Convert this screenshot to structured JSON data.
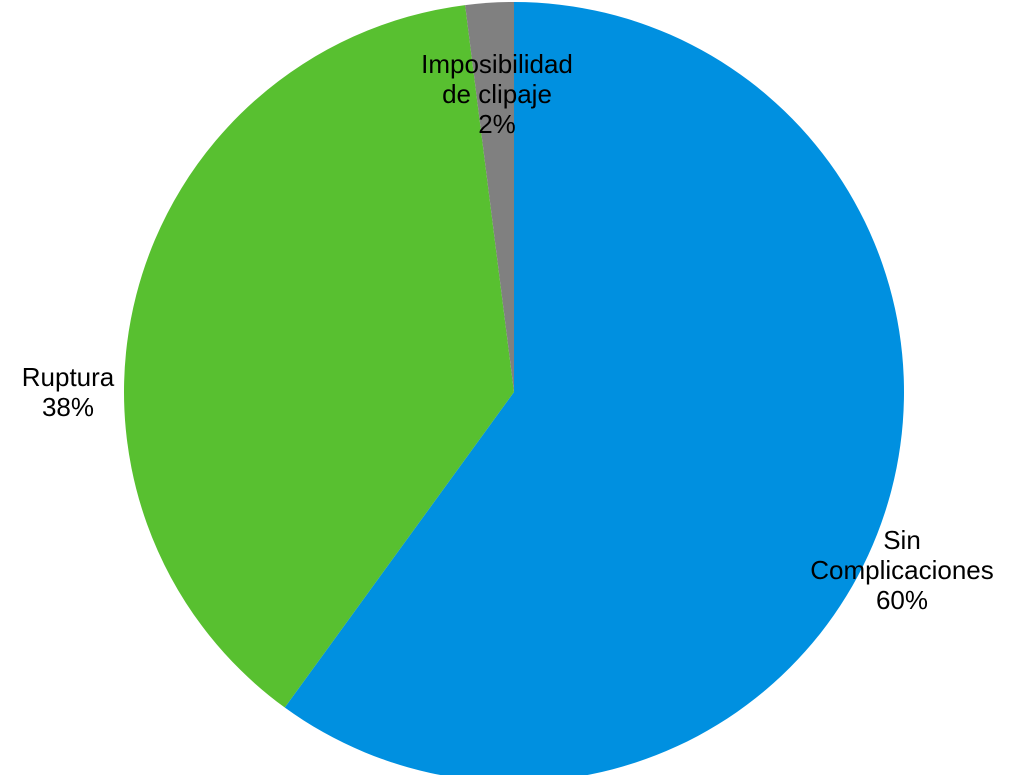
{
  "chart_data": {
    "type": "pie",
    "title": "",
    "slices": [
      {
        "name": "Sin Complicaciones",
        "label_lines": [
          "Sin",
          "Complicaciones"
        ],
        "value": 60,
        "value_label": "60%",
        "color": "#0090E0"
      },
      {
        "name": "Ruptura",
        "label_lines": [
          "Ruptura"
        ],
        "value": 38,
        "value_label": "38%",
        "color": "#58C030"
      },
      {
        "name": "Imposibilidad de clipaje",
        "label_lines": [
          "Imposibilidad",
          "de clipaje"
        ],
        "value": 2,
        "value_label": "2%",
        "color": "#808080"
      }
    ],
    "start_angle": "12 o'clock",
    "direction": "clockwise",
    "legend": "none",
    "labels": "category and percentage next to each slice"
  }
}
